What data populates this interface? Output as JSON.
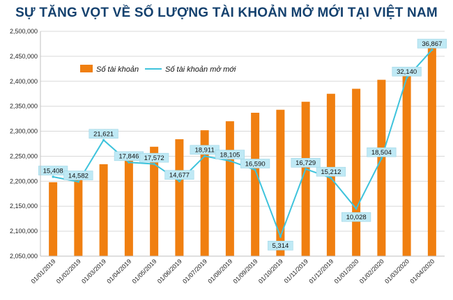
{
  "chart_data": {
    "type": "bar",
    "title": "SỰ TĂNG VỌT VỀ SỐ LƯỢNG TÀI KHOẢN MỞ MỚI TẠI VIỆT NAM",
    "categories": [
      "01/01/2019",
      "01/02/2019",
      "01/03/2019",
      "01/04/2019",
      "01/05/2019",
      "01/06/2019",
      "01/07/2019",
      "01/08/2019",
      "01/09/2019",
      "01/10/2019",
      "01/11/2019",
      "01/12/2019",
      "01/01/2020",
      "01/02/2020",
      "01/03/2020",
      "01/04/2020"
    ],
    "series": [
      {
        "name": "Số tài khoản",
        "type": "bar",
        "color": "#f07f10",
        "values": [
          2198000,
          2213000,
          2234000,
          2251000,
          2269000,
          2284000,
          2302000,
          2320000,
          2337000,
          2343000,
          2359000,
          2375000,
          2385000,
          2403000,
          2420000,
          2468000
        ]
      },
      {
        "name": "Số tài khoản mở mới",
        "type": "line",
        "color": "#3ec3dc",
        "values": [
          15408,
          14582,
          21621,
          17846,
          17572,
          14677,
          18911,
          18105,
          16590,
          5314,
          16729,
          15212,
          10028,
          18504,
          32140,
          36867
        ],
        "labels": [
          "15,408",
          "14,582",
          "21,621",
          "17,846",
          "17,572",
          "14,677",
          "18,911",
          "18,105",
          "16,590",
          "5,314",
          "16,729",
          "15,212",
          "10,028",
          "18,504",
          "32,140",
          "36,867"
        ]
      }
    ],
    "y_ticks": [
      "2,050,000",
      "2,100,000",
      "2,150,000",
      "2,200,000",
      "2,250,000",
      "2,300,000",
      "2,350,000",
      "2,400,000",
      "2,450,000",
      "2,500,000"
    ],
    "ylim": [
      2050000,
      2500000
    ],
    "line_range": [
      2000,
      40000
    ],
    "legend_placement": "top-left",
    "grid": true,
    "label_box_color": "#bfe9f5"
  }
}
